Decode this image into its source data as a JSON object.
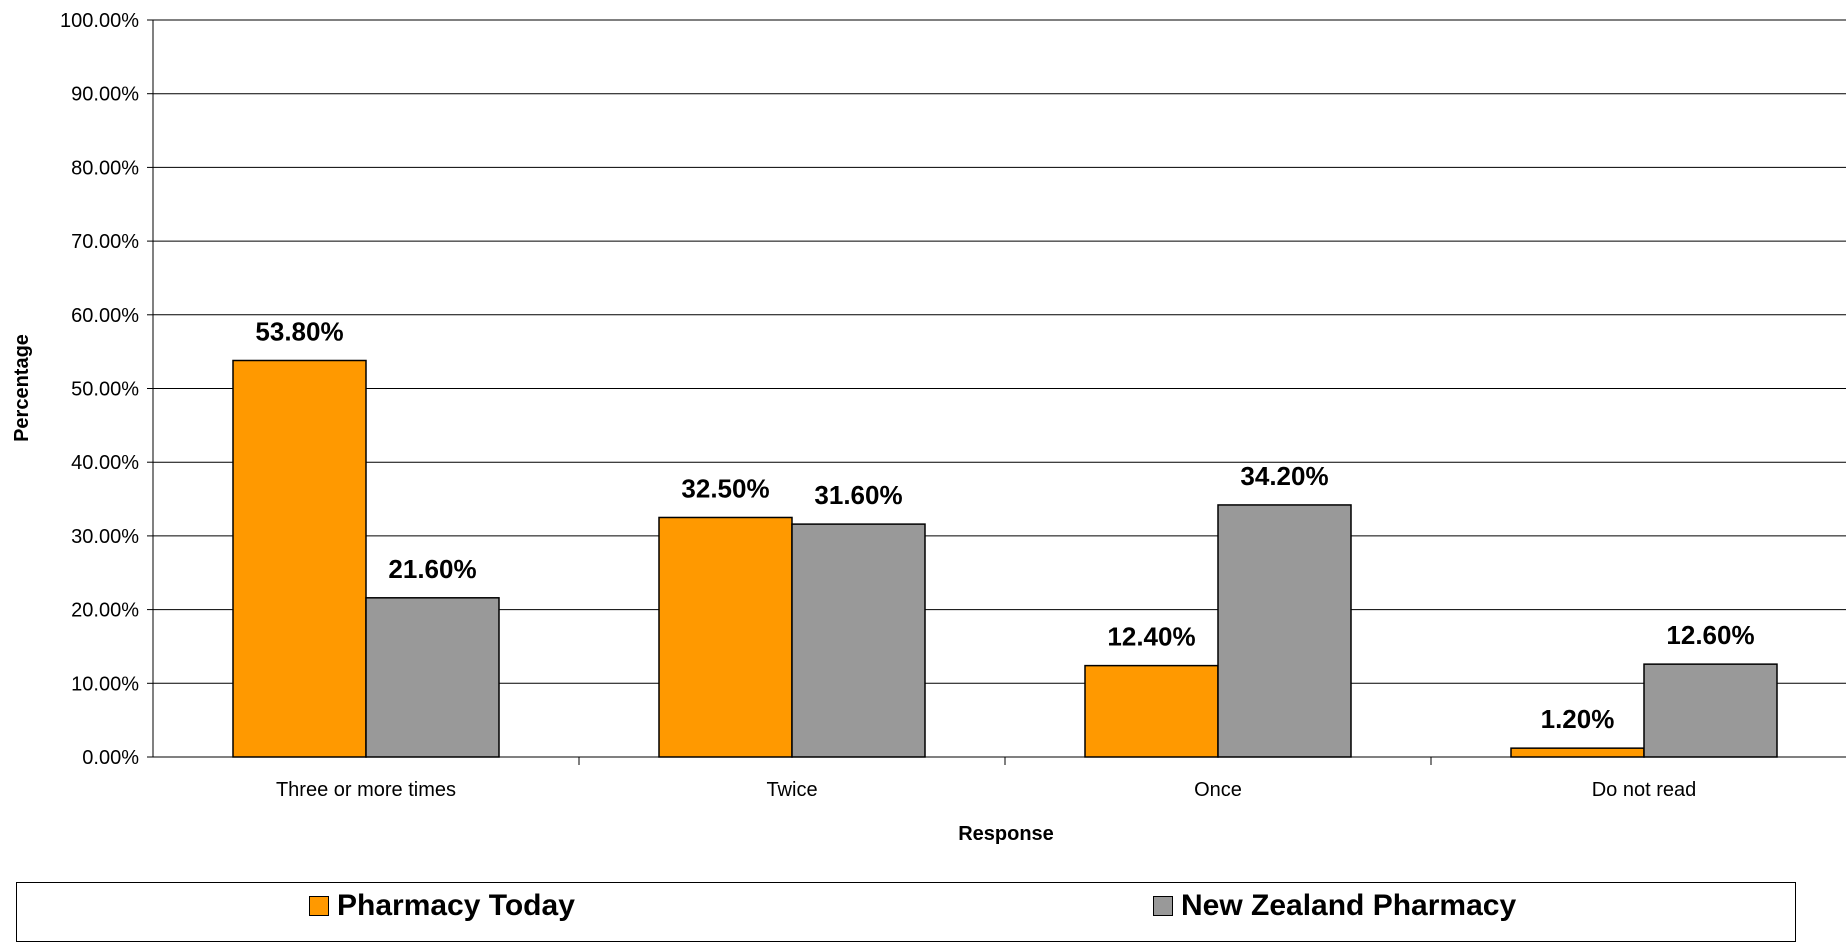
{
  "chart_data": {
    "type": "bar",
    "title": "",
    "xlabel": "Response",
    "ylabel": "Percentage",
    "ylim": [
      0,
      100
    ],
    "yticks": [
      "0.00%",
      "10.00%",
      "20.00%",
      "30.00%",
      "40.00%",
      "50.00%",
      "60.00%",
      "70.00%",
      "80.00%",
      "90.00%",
      "100.00%"
    ],
    "grid": true,
    "legend_position": "bottom",
    "categories": [
      "Three or more times",
      "Twice",
      "Once",
      "Do not read"
    ],
    "series": [
      {
        "name": "Pharmacy Today",
        "color": "#ff9900",
        "values": [
          53.8,
          32.5,
          12.4,
          1.2
        ],
        "labels": [
          "53.80%",
          "32.50%",
          "12.40%",
          "1.20%"
        ]
      },
      {
        "name": "New Zealand Pharmacy",
        "color": "#999999",
        "values": [
          21.6,
          31.6,
          34.2,
          12.6
        ],
        "labels": [
          "21.60%",
          "31.60%",
          "34.20%",
          "12.60%"
        ]
      }
    ]
  }
}
